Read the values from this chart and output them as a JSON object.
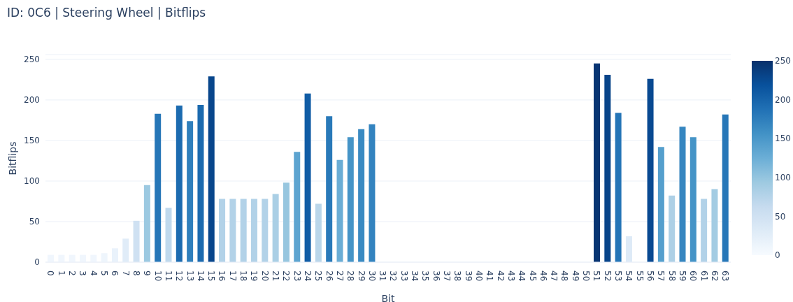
{
  "chart_data": {
    "type": "bar",
    "title": "ID: 0C6 | Steering Wheel | Bitflips",
    "xlabel": "Bit",
    "ylabel": "Bitflips",
    "categories": [
      "0",
      "1",
      "2",
      "3",
      "4",
      "5",
      "6",
      "7",
      "8",
      "9",
      "10",
      "11",
      "12",
      "13",
      "14",
      "15",
      "16",
      "17",
      "18",
      "19",
      "20",
      "21",
      "22",
      "23",
      "24",
      "25",
      "26",
      "27",
      "28",
      "29",
      "30",
      "31",
      "32",
      "33",
      "34",
      "35",
      "36",
      "37",
      "38",
      "39",
      "40",
      "41",
      "42",
      "43",
      "44",
      "45",
      "46",
      "47",
      "48",
      "49",
      "50",
      "51",
      "52",
      "53",
      "54",
      "55",
      "56",
      "57",
      "58",
      "59",
      "60",
      "61",
      "62",
      "63"
    ],
    "values": [
      9,
      9,
      9,
      9,
      9,
      11,
      17,
      29,
      51,
      95,
      183,
      67,
      193,
      174,
      194,
      229,
      78,
      78,
      78,
      78,
      78,
      84,
      98,
      136,
      208,
      72,
      180,
      126,
      154,
      164,
      170,
      0,
      0,
      0,
      0,
      0,
      0,
      0,
      0,
      0,
      0,
      0,
      0,
      0,
      0,
      0,
      0,
      0,
      0,
      0,
      0,
      245,
      231,
      184,
      32,
      0,
      226,
      142,
      82,
      167,
      154,
      78,
      90,
      182
    ],
    "colors": [
      "#f0f6fd",
      "#f0f6fd",
      "#f0f6fd",
      "#f0f6fd",
      "#f0f6fd",
      "#eef5fc",
      "#e9f2fb",
      "#e0ecf8",
      "#cfe1f2",
      "#9cc9e1",
      "#2676b7",
      "#c0d9ed",
      "#1c6bb0",
      "#2f7fbc",
      "#1b6aaf",
      "#08468c",
      "#b2d2e8",
      "#b2d2e8",
      "#b2d2e8",
      "#b2d2e8",
      "#b2d2e8",
      "#aacfe5",
      "#97c6df",
      "#5da4d0",
      "#105ca5",
      "#bad6ea",
      "#2979b9",
      "#6aadd5",
      "#4594c7",
      "#3a8ac2",
      "#3383bf",
      "#f7fbff",
      "#f7fbff",
      "#f7fbff",
      "#f7fbff",
      "#f7fbff",
      "#f7fbff",
      "#f7fbff",
      "#f7fbff",
      "#f7fbff",
      "#f7fbff",
      "#f7fbff",
      "#f7fbff",
      "#f7fbff",
      "#f7fbff",
      "#f7fbff",
      "#f7fbff",
      "#f7fbff",
      "#f7fbff",
      "#f7fbff",
      "#f7fbff",
      "#083573",
      "#084489",
      "#2575b7",
      "#ddeaf7",
      "#f7fbff",
      "#084991",
      "#559fcd",
      "#add0e6",
      "#3686c0",
      "#4594c7",
      "#b2d2e8",
      "#a3cce3",
      "#2777b8"
    ],
    "ylim": [
      0,
      256
    ],
    "yticks": [
      0,
      50,
      100,
      150,
      200,
      250
    ],
    "grid": "y",
    "clim": [
      0,
      250
    ],
    "cticks": [
      0,
      50,
      100,
      150,
      200,
      250
    ]
  }
}
